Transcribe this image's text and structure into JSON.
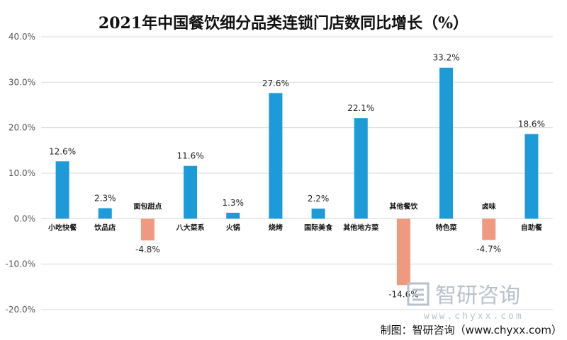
{
  "chart_data": {
    "type": "bar",
    "title": "2021年中国餐饮细分品类连锁门店数同比增长（%）",
    "xlabel": "",
    "ylabel": "",
    "ylim": [
      -20,
      40
    ],
    "yticks": [
      "-20.0%",
      "-10.0%",
      "0.0%",
      "10.0%",
      "20.0%",
      "30.0%",
      "40.0%"
    ],
    "ytick_values": [
      -20,
      -10,
      0,
      10,
      20,
      30,
      40
    ],
    "grid": true,
    "categories": [
      "小吃快餐",
      "饮品店",
      "面包甜点",
      "八大菜系",
      "火锅",
      "烧烤",
      "国际美食",
      "其他地方菜",
      "其他餐饮",
      "特色菜",
      "卤味",
      "自助餐"
    ],
    "values": [
      12.6,
      2.3,
      -4.8,
      11.6,
      1.3,
      27.6,
      2.2,
      22.1,
      -14.6,
      33.2,
      -4.7,
      18.6
    ],
    "labels": [
      "12.6%",
      "2.3%",
      "-4.8%",
      "11.6%",
      "1.3%",
      "27.6%",
      "2.2%",
      "22.1%",
      "-14.6%",
      "33.2%",
      "-4.7%",
      "18.6%"
    ],
    "colors": {
      "positive": "#1c9bd8",
      "negative": "#ef9a80"
    }
  },
  "watermark": {
    "name": "智研咨询",
    "url": "www.chyxx.com"
  },
  "credit": "制图：智研咨询（www.chyxx.com）"
}
